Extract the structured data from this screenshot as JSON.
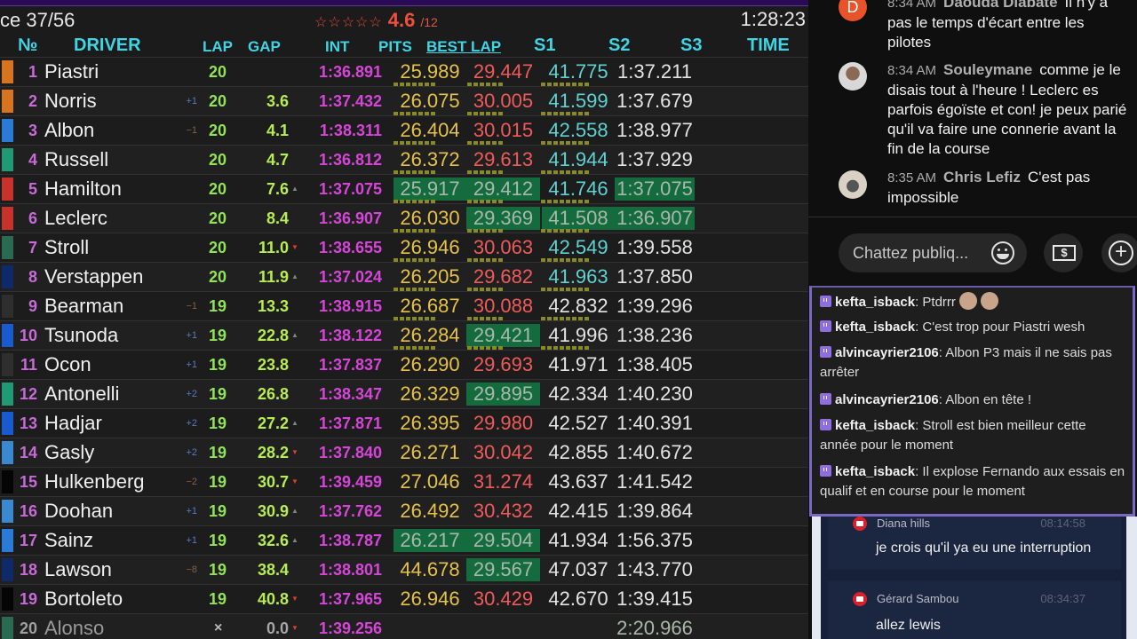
{
  "board": {
    "race_label": "ce  37/56",
    "rating": {
      "stars": "☆☆☆☆☆",
      "value": "4.6",
      "max": "/12"
    },
    "clock": "1:28:23",
    "headers": {
      "num": "№",
      "driver": "DRIVER",
      "lap": "LAP",
      "gap": "GAP",
      "int": "INT",
      "pits": "PITS",
      "best_lap": "BEST LAP",
      "s1": "S1",
      "s2": "S2",
      "s3": "S3",
      "time": "TIME"
    },
    "colors": {
      "header": "#3ed6e6",
      "position": "#c86ad8",
      "lap": "#92e35a",
      "gap": "#b7ec52",
      "int": "#d545d8",
      "sector1": "#e6c24a",
      "sector2_slow": "#f05a5a",
      "sector3": "#5fd2d2",
      "personal_best_bg": "#136b3e"
    },
    "rows": [
      {
        "pos": "1",
        "driver": "Piastri",
        "team_color": "#d8731f",
        "delta": "",
        "lap": "20",
        "gap": "",
        "trend": "",
        "int": "1:36.891",
        "s1": "25.989",
        "s2": "29.447",
        "s3": "41.775",
        "time": "1:37.211"
      },
      {
        "pos": "2",
        "driver": "Norris",
        "team_color": "#d8731f",
        "delta": "+1",
        "lap": "20",
        "gap": "3.6",
        "trend": "",
        "int": "1:37.432",
        "s1": "26.075",
        "s2": "30.005",
        "s3": "41.599",
        "time": "1:37.679"
      },
      {
        "pos": "3",
        "driver": "Albon",
        "team_color": "#2a7ad8",
        "delta": "−1",
        "lap": "20",
        "gap": "4.1",
        "trend": "",
        "int": "1:38.311",
        "s1": "26.404",
        "s2": "30.015",
        "s3": "42.558",
        "time": "1:38.977"
      },
      {
        "pos": "4",
        "driver": "Russell",
        "team_color": "#1f9a74",
        "delta": "",
        "lap": "20",
        "gap": "4.7",
        "trend": "",
        "int": "1:36.812",
        "s1": "26.372",
        "s2": "29.613",
        "s3": "41.944",
        "time": "1:37.929"
      },
      {
        "pos": "5",
        "driver": "Hamilton",
        "team_color": "#c8322a",
        "delta": "",
        "lap": "20",
        "gap": "7.6",
        "trend": "▲",
        "int": "1:37.075",
        "s1": "25.917",
        "s2": "29.412",
        "s3": "41.746",
        "time": "1:37.075"
      },
      {
        "pos": "6",
        "driver": "Leclerc",
        "team_color": "#c8322a",
        "delta": "",
        "lap": "20",
        "gap": "8.4",
        "trend": "",
        "int": "1:36.907",
        "s1": "26.030",
        "s2": "29.369",
        "s3": "41.508",
        "time": "1:36.907"
      },
      {
        "pos": "7",
        "driver": "Stroll",
        "team_color": "#2a6a50",
        "delta": "",
        "lap": "20",
        "gap": "11.0",
        "trend": "▼",
        "int": "1:38.655",
        "s1": "26.946",
        "s2": "30.063",
        "s3": "42.549",
        "time": "1:39.558"
      },
      {
        "pos": "8",
        "driver": "Verstappen",
        "team_color": "#0e2a6a",
        "delta": "",
        "lap": "20",
        "gap": "11.9",
        "trend": "▲",
        "int": "1:37.024",
        "s1": "26.205",
        "s2": "29.682",
        "s3": "41.963",
        "time": "1:37.850"
      },
      {
        "pos": "9",
        "driver": "Bearman",
        "team_color": "#2e2e2e",
        "delta": "−1",
        "lap": "19",
        "gap": "13.3",
        "trend": "",
        "int": "1:38.915",
        "s1": "26.687",
        "s2": "30.088",
        "s3": "42.832",
        "time": "1:39.296"
      },
      {
        "pos": "10",
        "driver": "Tsunoda",
        "team_color": "#1a5ad0",
        "delta": "+1",
        "lap": "19",
        "gap": "22.8",
        "trend": "▲",
        "int": "1:38.122",
        "s1": "26.284",
        "s2": "29.421",
        "s3": "41.996",
        "time": "1:38.236"
      },
      {
        "pos": "11",
        "driver": "Ocon",
        "team_color": "#2e2e2e",
        "delta": "+1",
        "lap": "19",
        "gap": "23.8",
        "trend": "",
        "int": "1:37.837",
        "s1": "26.290",
        "s2": "29.693",
        "s3": "41.971",
        "time": "1:38.405"
      },
      {
        "pos": "12",
        "driver": "Antonelli",
        "team_color": "#1f9a74",
        "delta": "+2",
        "lap": "19",
        "gap": "26.8",
        "trend": "",
        "int": "1:38.347",
        "s1": "26.329",
        "s2": "29.895",
        "s3": "42.334",
        "time": "1:40.230"
      },
      {
        "pos": "13",
        "driver": "Hadjar",
        "team_color": "#1a5ad0",
        "delta": "+2",
        "lap": "19",
        "gap": "27.2",
        "trend": "▲",
        "int": "1:37.871",
        "s1": "26.395",
        "s2": "29.980",
        "s3": "42.527",
        "time": "1:40.391"
      },
      {
        "pos": "14",
        "driver": "Gasly",
        "team_color": "#3a88d0",
        "delta": "+2",
        "lap": "19",
        "gap": "28.2",
        "trend": "▼",
        "int": "1:37.840",
        "s1": "26.271",
        "s2": "30.042",
        "s3": "42.855",
        "time": "1:40.672"
      },
      {
        "pos": "15",
        "driver": "Hulkenberg",
        "team_color": "#050505",
        "delta": "−2",
        "lap": "19",
        "gap": "30.7",
        "trend": "▼",
        "int": "1:39.459",
        "s1": "27.046",
        "s2": "31.274",
        "s3": "43.637",
        "time": "1:41.542"
      },
      {
        "pos": "16",
        "driver": "Doohan",
        "team_color": "#3a88d0",
        "delta": "+1",
        "lap": "19",
        "gap": "30.9",
        "trend": "▲",
        "int": "1:37.762",
        "s1": "26.492",
        "s2": "30.432",
        "s3": "42.415",
        "time": "1:39.864"
      },
      {
        "pos": "17",
        "driver": "Sainz",
        "team_color": "#2a7ad8",
        "delta": "+1",
        "lap": "19",
        "gap": "32.6",
        "trend": "▲",
        "int": "1:38.787",
        "s1": "26.217",
        "s2": "29.504",
        "s3": "41.934",
        "time": "1:56.375"
      },
      {
        "pos": "18",
        "driver": "Lawson",
        "team_color": "#0e2a6a",
        "delta": "−8",
        "lap": "19",
        "gap": "38.4",
        "trend": "",
        "int": "1:38.801",
        "s1": "44.678",
        "s2": "29.567",
        "s3": "47.037",
        "time": "1:43.770"
      },
      {
        "pos": "19",
        "driver": "Bortoleto",
        "team_color": "#050505",
        "delta": "",
        "lap": "19",
        "gap": "40.8",
        "trend": "▼",
        "int": "1:37.965",
        "s1": "26.946",
        "s2": "30.429",
        "s3": "42.670",
        "time": "1:39.415"
      },
      {
        "pos": "20",
        "driver": "Alonso",
        "team_color": "#2a6a50",
        "delta": "",
        "lap": "×",
        "gap": "0.0",
        "trend": "▼",
        "int": "1:39.256",
        "s1": "",
        "s2": "",
        "s3": "",
        "time": "2:20.966"
      }
    ]
  },
  "yt_chat": {
    "messages": [
      {
        "time": "8:34 AM",
        "author": "Daouda Diabate",
        "avatar_letter": "D",
        "text": "Il n'y a pas le temps d'écart entre les pilotes"
      },
      {
        "time": "8:34 AM",
        "author": "Souleymane",
        "text": "comme je le disais tout à l'heure ! Leclerc es parfois égoïste et con! je peux parié qu'il va faire une connerie avant la fin de la course"
      },
      {
        "time": "8:35 AM",
        "author": "Chris Lefiz",
        "text": "C'est pas impossible"
      }
    ],
    "input_placeholder": "Chattez publiq...",
    "icons": {
      "emoji": "emoji-icon",
      "super_chat": "dollar-icon",
      "add": "plus-icon"
    }
  },
  "twitch_chat": {
    "messages": [
      {
        "user": "kefta_isback",
        "text": "Ptdrrr"
      },
      {
        "user": "kefta_isback",
        "text": "C'est trop pour Piastri wesh"
      },
      {
        "user": "alvincayrier2106",
        "text": "Albon P3 mais il ne sais pas arrêter"
      },
      {
        "user": "alvincayrier2106",
        "text": "Albon en tête !"
      },
      {
        "user": "kefta_isback",
        "text": "Stroll est bien meilleur cette année pour le moment"
      },
      {
        "user": "kefta_isback",
        "text": "Il explose Fernando aux essais en qualif et en course pour le moment"
      }
    ]
  },
  "overlay_chat": {
    "messages": [
      {
        "author": "Diana hills",
        "time": "08:14:58",
        "text": "je crois qu'il ya eu une interruption"
      },
      {
        "author": "Gérard Sambou",
        "time": "08:34:37",
        "text": "allez lewis"
      }
    ]
  }
}
